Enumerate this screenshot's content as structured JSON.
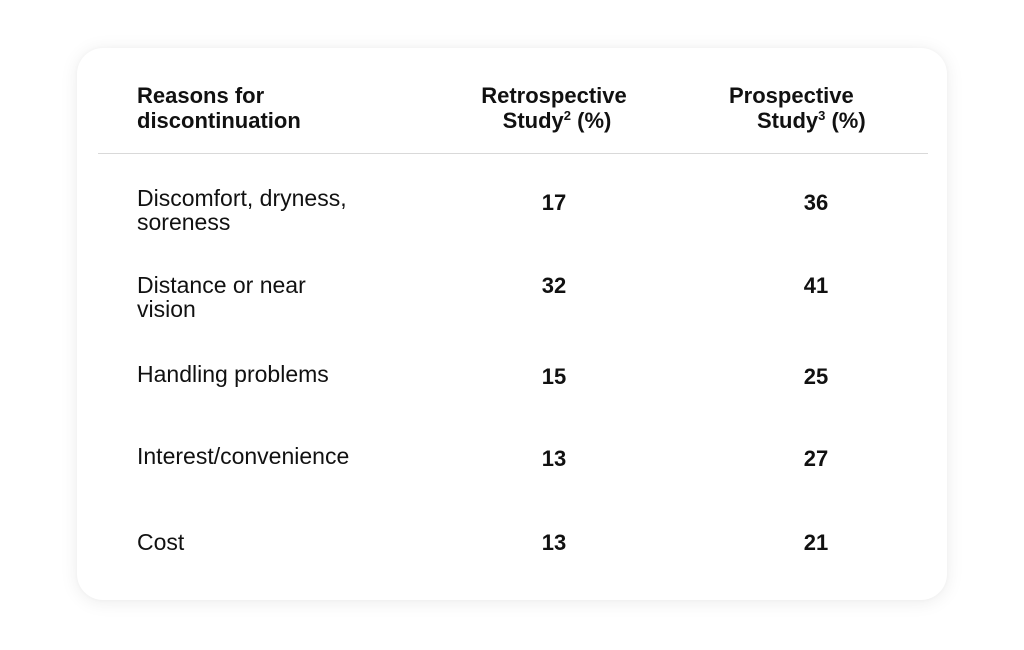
{
  "table": {
    "headers": {
      "reason": [
        "Reasons for",
        "discontinuation"
      ],
      "retrospective": {
        "line1": "Retrospective",
        "line2": "Study",
        "sup": "2",
        "unit": " (%)"
      },
      "prospective": {
        "line1": "Prospective",
        "line2": "Study",
        "sup": "3",
        "unit": " (%)"
      }
    },
    "rows": [
      {
        "reason": [
          "Discomfort, dryness,",
          "soreness"
        ],
        "retrospective": "17",
        "prospective": "36"
      },
      {
        "reason": [
          "Distance or near",
          "vision"
        ],
        "retrospective": "32",
        "prospective": "41"
      },
      {
        "reason": [
          "Handling problems"
        ],
        "retrospective": "15",
        "prospective": "25"
      },
      {
        "reason": [
          "Interest/convenience"
        ],
        "retrospective": "13",
        "prospective": "27"
      },
      {
        "reason": [
          "Cost"
        ],
        "retrospective": "13",
        "prospective": "21"
      }
    ]
  }
}
